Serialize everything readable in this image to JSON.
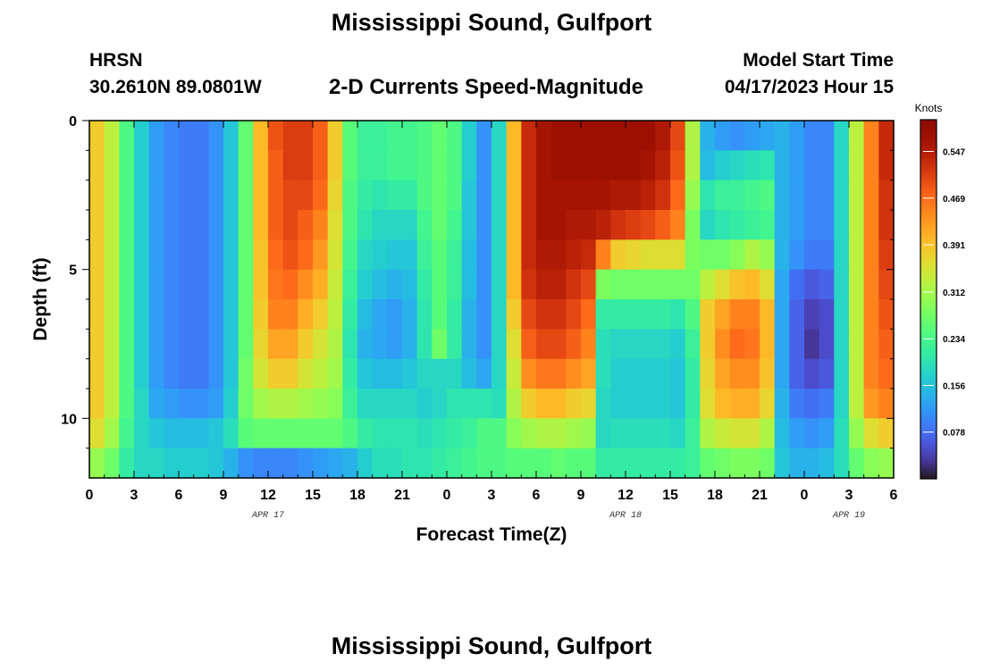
{
  "header": {
    "title": "Mississippi Sound, Gulfport",
    "station": "HRSN",
    "coords": "30.2610N  89.0801W",
    "subtitle": "2-D Currents Speed-Magnitude",
    "model_start_label": "Model Start Time",
    "model_start_value": "04/17/2023 Hour 15"
  },
  "footer": {
    "title": "Mississippi Sound, Gulfport"
  },
  "chart_data": {
    "type": "heatmap",
    "title": "Mississippi Sound, Gulfport",
    "subtitle": "2-D Currents Speed-Magnitude",
    "xlabel": "Forecast Time(Z)",
    "ylabel": "Depth (ft)",
    "colorbar_label": "Knots",
    "colormap": "turbo",
    "xlim": [
      0,
      54
    ],
    "ylim": [
      0,
      12
    ],
    "y_inverted": true,
    "x_ticks": [
      0,
      3,
      6,
      9,
      12,
      15,
      18,
      21,
      24,
      27,
      30,
      33,
      36,
      39,
      42,
      45,
      48,
      51,
      54
    ],
    "x_tick_labels": [
      "0",
      "3",
      "6",
      "9",
      "12",
      "15",
      "18",
      "21",
      "0",
      "3",
      "6",
      "9",
      "12",
      "15",
      "18",
      "21",
      "0",
      "3",
      "6"
    ],
    "y_ticks": [
      0,
      5,
      10
    ],
    "y_tick_labels": [
      "0",
      "5",
      "10"
    ],
    "date_labels": [
      {
        "x": 12,
        "label": "APR 17"
      },
      {
        "x": 36,
        "label": "APR 18"
      },
      {
        "x": 51,
        "label": "APR 19"
      }
    ],
    "colorbar_range": [
      0.0,
      0.6
    ],
    "colorbar_ticks": [
      0.078,
      0.156,
      0.234,
      0.312,
      0.391,
      0.469,
      0.547
    ],
    "colorbar_tick_labels": [
      "0.078",
      "0.156",
      "0.234",
      "0.312",
      "0.391",
      "0.469",
      "0.547"
    ],
    "depths": [
      0.5,
      1.5,
      2.5,
      3.5,
      4.5,
      5.5,
      6.5,
      7.5,
      8.5,
      9.5,
      10.5,
      11.5
    ],
    "hours": [
      0.5,
      1.5,
      2.5,
      3.5,
      4.5,
      5.5,
      6.5,
      7.5,
      8.5,
      9.5,
      10.5,
      11.5,
      12.5,
      13.5,
      14.5,
      15.5,
      16.5,
      17.5,
      18.5,
      19.5,
      20.5,
      21.5,
      22.5,
      23.5,
      24.5,
      25.5,
      26.5,
      27.5,
      28.5,
      29.5,
      30.5,
      31.5,
      32.5,
      33.5,
      34.5,
      35.5,
      36.5,
      37.5,
      38.5,
      39.5,
      40.5,
      41.5,
      42.5,
      43.5,
      44.5,
      45.5,
      46.5,
      47.5,
      48.5,
      49.5,
      50.5,
      51.5,
      52.5,
      53.5
    ],
    "speed_knots": [
      [
        0.38,
        0.33,
        0.24,
        0.17,
        0.12,
        0.1,
        0.09,
        0.09,
        0.11,
        0.16,
        0.26,
        0.4,
        0.49,
        0.51,
        0.51,
        0.48,
        0.38,
        0.25,
        0.22,
        0.22,
        0.23,
        0.23,
        0.24,
        0.26,
        0.24,
        0.17,
        0.11,
        0.18,
        0.4,
        0.53,
        0.56,
        0.57,
        0.57,
        0.57,
        0.57,
        0.57,
        0.57,
        0.57,
        0.55,
        0.5,
        0.32,
        0.14,
        0.12,
        0.11,
        0.12,
        0.13,
        0.14,
        0.12,
        0.1,
        0.1,
        0.18,
        0.33,
        0.45,
        0.53
      ],
      [
        0.38,
        0.33,
        0.24,
        0.17,
        0.12,
        0.1,
        0.09,
        0.09,
        0.11,
        0.16,
        0.26,
        0.4,
        0.48,
        0.51,
        0.51,
        0.48,
        0.38,
        0.25,
        0.22,
        0.22,
        0.23,
        0.23,
        0.24,
        0.26,
        0.24,
        0.17,
        0.11,
        0.18,
        0.4,
        0.53,
        0.56,
        0.57,
        0.57,
        0.57,
        0.57,
        0.57,
        0.57,
        0.56,
        0.54,
        0.49,
        0.32,
        0.15,
        0.17,
        0.18,
        0.19,
        0.2,
        0.14,
        0.12,
        0.1,
        0.1,
        0.18,
        0.33,
        0.45,
        0.53
      ],
      [
        0.38,
        0.33,
        0.24,
        0.17,
        0.12,
        0.1,
        0.09,
        0.09,
        0.11,
        0.16,
        0.26,
        0.4,
        0.48,
        0.5,
        0.5,
        0.47,
        0.37,
        0.24,
        0.21,
        0.2,
        0.21,
        0.21,
        0.24,
        0.26,
        0.24,
        0.16,
        0.11,
        0.18,
        0.4,
        0.53,
        0.56,
        0.56,
        0.56,
        0.56,
        0.56,
        0.55,
        0.55,
        0.54,
        0.52,
        0.47,
        0.3,
        0.2,
        0.22,
        0.22,
        0.23,
        0.24,
        0.14,
        0.12,
        0.1,
        0.1,
        0.18,
        0.33,
        0.45,
        0.52
      ],
      [
        0.38,
        0.33,
        0.24,
        0.17,
        0.12,
        0.1,
        0.09,
        0.09,
        0.11,
        0.16,
        0.26,
        0.4,
        0.48,
        0.5,
        0.48,
        0.45,
        0.36,
        0.24,
        0.2,
        0.18,
        0.18,
        0.18,
        0.23,
        0.26,
        0.23,
        0.16,
        0.11,
        0.18,
        0.4,
        0.53,
        0.56,
        0.56,
        0.55,
        0.55,
        0.54,
        0.52,
        0.51,
        0.5,
        0.48,
        0.45,
        0.28,
        0.18,
        0.2,
        0.21,
        0.22,
        0.23,
        0.14,
        0.12,
        0.1,
        0.1,
        0.18,
        0.33,
        0.45,
        0.52
      ],
      [
        0.38,
        0.33,
        0.24,
        0.17,
        0.12,
        0.1,
        0.09,
        0.09,
        0.11,
        0.16,
        0.26,
        0.39,
        0.47,
        0.49,
        0.47,
        0.43,
        0.35,
        0.23,
        0.18,
        0.17,
        0.16,
        0.16,
        0.22,
        0.25,
        0.22,
        0.15,
        0.11,
        0.18,
        0.4,
        0.53,
        0.55,
        0.55,
        0.54,
        0.53,
        0.45,
        0.38,
        0.37,
        0.36,
        0.36,
        0.36,
        0.28,
        0.27,
        0.27,
        0.29,
        0.32,
        0.3,
        0.14,
        0.11,
        0.09,
        0.09,
        0.18,
        0.33,
        0.45,
        0.51
      ],
      [
        0.38,
        0.33,
        0.24,
        0.17,
        0.12,
        0.1,
        0.09,
        0.09,
        0.11,
        0.16,
        0.26,
        0.39,
        0.46,
        0.47,
        0.44,
        0.41,
        0.34,
        0.22,
        0.17,
        0.15,
        0.14,
        0.15,
        0.21,
        0.25,
        0.22,
        0.15,
        0.11,
        0.18,
        0.4,
        0.52,
        0.54,
        0.54,
        0.52,
        0.5,
        0.28,
        0.27,
        0.27,
        0.27,
        0.27,
        0.27,
        0.27,
        0.33,
        0.36,
        0.39,
        0.4,
        0.36,
        0.13,
        0.08,
        0.06,
        0.07,
        0.18,
        0.33,
        0.45,
        0.5
      ],
      [
        0.38,
        0.33,
        0.24,
        0.17,
        0.12,
        0.1,
        0.09,
        0.09,
        0.11,
        0.16,
        0.26,
        0.38,
        0.45,
        0.45,
        0.41,
        0.38,
        0.33,
        0.21,
        0.15,
        0.13,
        0.12,
        0.14,
        0.2,
        0.25,
        0.21,
        0.14,
        0.11,
        0.18,
        0.38,
        0.5,
        0.52,
        0.52,
        0.5,
        0.47,
        0.21,
        0.21,
        0.21,
        0.21,
        0.21,
        0.2,
        0.24,
        0.38,
        0.42,
        0.45,
        0.45,
        0.4,
        0.13,
        0.07,
        0.04,
        0.05,
        0.18,
        0.33,
        0.45,
        0.49
      ],
      [
        0.38,
        0.33,
        0.24,
        0.17,
        0.12,
        0.1,
        0.09,
        0.09,
        0.11,
        0.16,
        0.26,
        0.37,
        0.42,
        0.42,
        0.38,
        0.35,
        0.32,
        0.2,
        0.14,
        0.13,
        0.12,
        0.14,
        0.2,
        0.27,
        0.21,
        0.14,
        0.11,
        0.18,
        0.36,
        0.48,
        0.5,
        0.5,
        0.48,
        0.45,
        0.19,
        0.18,
        0.18,
        0.18,
        0.18,
        0.17,
        0.22,
        0.38,
        0.44,
        0.47,
        0.46,
        0.4,
        0.13,
        0.07,
        0.03,
        0.05,
        0.18,
        0.33,
        0.45,
        0.48
      ],
      [
        0.38,
        0.33,
        0.24,
        0.17,
        0.12,
        0.1,
        0.09,
        0.09,
        0.11,
        0.16,
        0.27,
        0.35,
        0.38,
        0.38,
        0.35,
        0.33,
        0.31,
        0.21,
        0.16,
        0.15,
        0.15,
        0.16,
        0.18,
        0.18,
        0.18,
        0.15,
        0.13,
        0.18,
        0.34,
        0.44,
        0.46,
        0.46,
        0.44,
        0.42,
        0.19,
        0.17,
        0.17,
        0.17,
        0.17,
        0.16,
        0.21,
        0.37,
        0.42,
        0.44,
        0.44,
        0.39,
        0.13,
        0.07,
        0.05,
        0.06,
        0.18,
        0.33,
        0.45,
        0.47
      ],
      [
        0.38,
        0.33,
        0.24,
        0.18,
        0.13,
        0.12,
        0.11,
        0.11,
        0.12,
        0.17,
        0.27,
        0.31,
        0.32,
        0.32,
        0.31,
        0.3,
        0.29,
        0.22,
        0.18,
        0.18,
        0.18,
        0.18,
        0.17,
        0.18,
        0.2,
        0.2,
        0.2,
        0.19,
        0.32,
        0.38,
        0.4,
        0.4,
        0.38,
        0.37,
        0.18,
        0.17,
        0.17,
        0.17,
        0.17,
        0.16,
        0.21,
        0.36,
        0.4,
        0.41,
        0.41,
        0.37,
        0.14,
        0.09,
        0.08,
        0.09,
        0.18,
        0.33,
        0.43,
        0.45
      ],
      [
        0.36,
        0.31,
        0.23,
        0.18,
        0.16,
        0.15,
        0.15,
        0.15,
        0.16,
        0.19,
        0.25,
        0.26,
        0.26,
        0.26,
        0.26,
        0.26,
        0.26,
        0.24,
        0.21,
        0.2,
        0.2,
        0.2,
        0.19,
        0.2,
        0.21,
        0.22,
        0.24,
        0.24,
        0.29,
        0.31,
        0.32,
        0.32,
        0.31,
        0.3,
        0.18,
        0.19,
        0.19,
        0.19,
        0.19,
        0.18,
        0.22,
        0.32,
        0.34,
        0.35,
        0.35,
        0.32,
        0.15,
        0.12,
        0.11,
        0.12,
        0.19,
        0.3,
        0.36,
        0.38
      ],
      [
        0.3,
        0.27,
        0.21,
        0.18,
        0.18,
        0.17,
        0.17,
        0.17,
        0.16,
        0.14,
        0.11,
        0.1,
        0.1,
        0.1,
        0.11,
        0.12,
        0.13,
        0.14,
        0.17,
        0.19,
        0.19,
        0.2,
        0.2,
        0.21,
        0.22,
        0.23,
        0.24,
        0.24,
        0.25,
        0.25,
        0.25,
        0.26,
        0.25,
        0.25,
        0.21,
        0.21,
        0.21,
        0.21,
        0.21,
        0.21,
        0.22,
        0.26,
        0.27,
        0.28,
        0.28,
        0.27,
        0.16,
        0.14,
        0.14,
        0.15,
        0.19,
        0.26,
        0.29,
        0.3
      ]
    ]
  }
}
